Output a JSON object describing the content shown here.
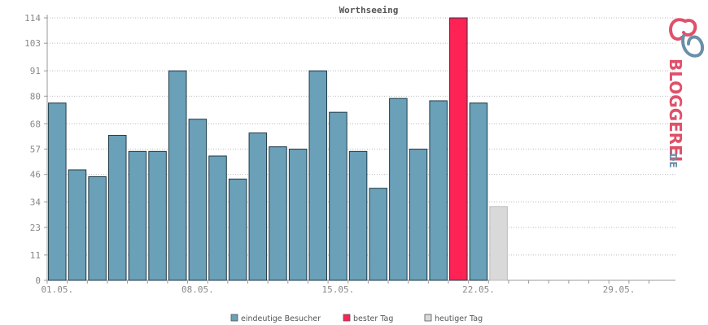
{
  "chart_data": {
    "type": "bar",
    "title": "Worthseeing",
    "xlabel": "",
    "ylabel": "",
    "ylim": [
      0,
      114
    ],
    "yticks": [
      0,
      11,
      23,
      34,
      46,
      57,
      68,
      80,
      91,
      103,
      114
    ],
    "xtick_labels": [
      {
        "label": "01.05.",
        "day": 1
      },
      {
        "label": "08.05.",
        "day": 8
      },
      {
        "label": "15.05.",
        "day": 15
      },
      {
        "label": "22.05.",
        "day": 22
      },
      {
        "label": "29.05.",
        "day": 29
      }
    ],
    "days_in_range": 31,
    "grid": true,
    "legend_position": "bottom",
    "series": [
      {
        "name": "eindeutige Besucher",
        "color": "#6aa0b8",
        "points": [
          {
            "day": 1,
            "value": 77
          },
          {
            "day": 2,
            "value": 48
          },
          {
            "day": 3,
            "value": 45
          },
          {
            "day": 4,
            "value": 63
          },
          {
            "day": 5,
            "value": 56
          },
          {
            "day": 6,
            "value": 56
          },
          {
            "day": 7,
            "value": 91
          },
          {
            "day": 8,
            "value": 70
          },
          {
            "day": 9,
            "value": 54
          },
          {
            "day": 10,
            "value": 44
          },
          {
            "day": 11,
            "value": 64
          },
          {
            "day": 12,
            "value": 58
          },
          {
            "day": 13,
            "value": 57
          },
          {
            "day": 14,
            "value": 91
          },
          {
            "day": 15,
            "value": 73
          },
          {
            "day": 16,
            "value": 56
          },
          {
            "day": 17,
            "value": 40
          },
          {
            "day": 18,
            "value": 79
          },
          {
            "day": 19,
            "value": 57
          },
          {
            "day": 20,
            "value": 78
          },
          {
            "day": 22,
            "value": 77
          }
        ]
      },
      {
        "name": "bester Tag",
        "color": "#ff2255",
        "points": [
          {
            "day": 21,
            "value": 114
          }
        ]
      },
      {
        "name": "heutiger Tag",
        "color": "#d9d9d9",
        "points": [
          {
            "day": 23,
            "value": 32
          }
        ]
      }
    ]
  },
  "brand": {
    "name": "BLOGGEREI",
    "suffix": ".DE",
    "color_main": "#e0506a",
    "color_suffix": "#6a8fa8"
  }
}
